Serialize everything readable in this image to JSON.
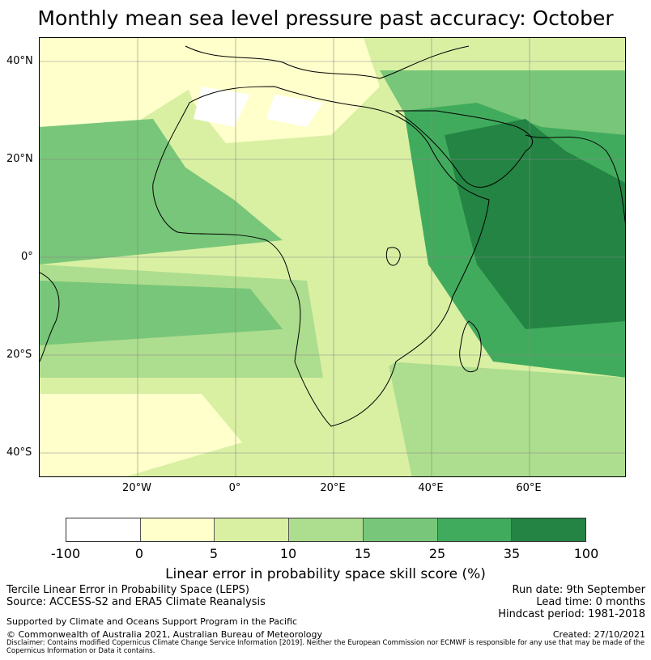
{
  "title": "Monthly mean sea level pressure past accuracy: October",
  "lat_labels": [
    "40°N",
    "20°N",
    "0°",
    "20°S",
    "40°S"
  ],
  "lon_labels": [
    "20°W",
    "0°",
    "20°E",
    "40°E",
    "60°E"
  ],
  "colorbar": {
    "ticks": [
      "-100",
      "0",
      "5",
      "10",
      "15",
      "25",
      "35",
      "100"
    ],
    "colors": [
      "#ffffff",
      "#ffffcc",
      "#d9f0a3",
      "#addd8e",
      "#78c679",
      "#41ab5d",
      "#238443"
    ],
    "label": "Linear error in probability space skill score (%)"
  },
  "info_left": {
    "line1": "Tercile Linear Error in Probability Space (LEPS)",
    "line2": "Source: ACCESS-S2 and ERA5 Climate Reanalysis",
    "support": "Supported by Climate and Oceans Support Program in the Pacific",
    "copyright": "© Commonwealth of Australia 2021, Australian Bureau of Meteorology"
  },
  "info_right": {
    "run_date": "Run date: 9th September",
    "lead_time": "Lead time: 0 months",
    "hindcast": "Hindcast period: 1981-2018",
    "created": "Created: 27/10/2021"
  },
  "disclaimer": "Disclaimer: Contains modified Copernicus Climate Change Service Information [2019]. Neither the European Commission nor ECMWF is responsible for any use that may be made of the Copernicus Information or Data it contains."
}
